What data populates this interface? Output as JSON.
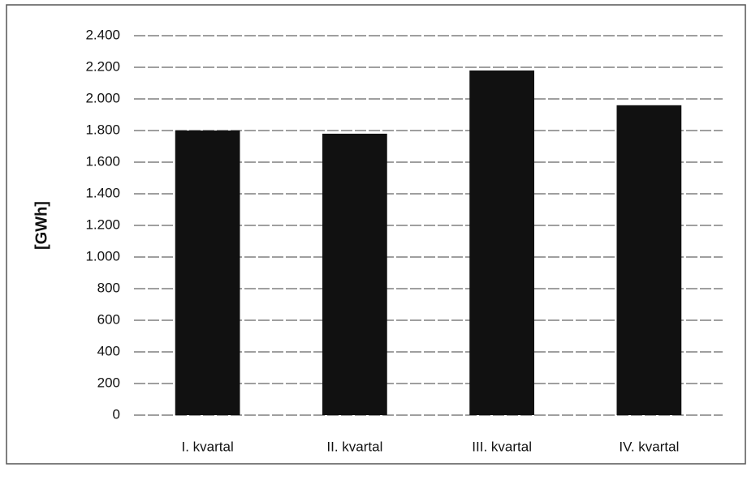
{
  "chart_data": {
    "type": "bar",
    "y_label": "[GWh]",
    "categories": [
      "I. kvartal",
      "II. kvartal",
      "III. kvartal",
      "IV. kvartal"
    ],
    "values": [
      1800,
      1780,
      2180,
      1960
    ],
    "color": "#111111",
    "ylim": [
      0,
      2400
    ],
    "yticks": [
      0,
      200,
      400,
      600,
      800,
      {
        "value": 1000,
        "label": "1.000"
      },
      {
        "value": 1200,
        "label": "1.200"
      },
      {
        "value": 1400,
        "label": "1.400"
      },
      {
        "value": 1600,
        "label": "1.600"
      },
      {
        "value": 1800,
        "label": "1.800"
      },
      {
        "value": 2000,
        "label": "2.000"
      },
      {
        "value": 2200,
        "label": "2.200"
      },
      {
        "value": 2400,
        "label": "2.400"
      }
    ],
    "grid": true
  }
}
